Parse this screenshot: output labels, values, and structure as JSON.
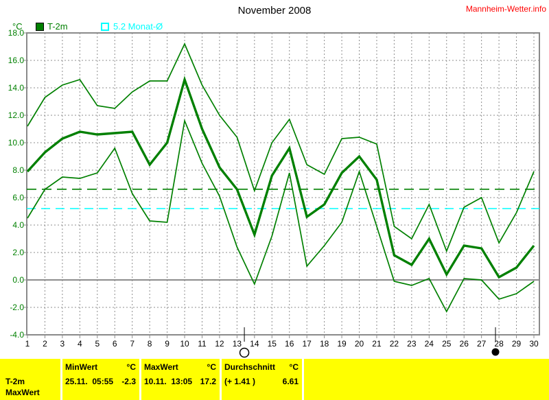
{
  "header": {
    "title": "November 2008",
    "site": "Mannheim-Wetter.info"
  },
  "legend": {
    "unit": "°C",
    "series1": "T-2m",
    "series2": "5.2 Monat-Ø"
  },
  "colors": {
    "line_green": "#008000",
    "cyan": "#00ffff",
    "grid": "#8c8c8c",
    "border": "#8a8a8a",
    "red": "#ff0000",
    "table_bg": "#ffff00",
    "black": "#000000"
  },
  "chart_data": {
    "type": "line",
    "title": "November 2008",
    "ylabel": "°C",
    "ylim": [
      -4,
      18
    ],
    "ytick_step": 2,
    "grid": true,
    "x": [
      1,
      2,
      3,
      4,
      5,
      6,
      7,
      8,
      9,
      10,
      11,
      12,
      13,
      14,
      15,
      16,
      17,
      18,
      19,
      20,
      21,
      22,
      23,
      24,
      25,
      26,
      27,
      28,
      29,
      30
    ],
    "series": [
      {
        "name": "max",
        "width": 1.7,
        "values": [
          11.2,
          13.3,
          14.2,
          14.6,
          12.7,
          12.5,
          13.7,
          14.5,
          14.5,
          17.2,
          14.2,
          12.0,
          10.4,
          6.5,
          10.0,
          11.7,
          8.4,
          7.7,
          10.3,
          10.4,
          9.9,
          3.9,
          3.0,
          5.5,
          2.1,
          5.3,
          6.0,
          2.7,
          4.9,
          7.9
        ]
      },
      {
        "name": "mean",
        "width": 3.4,
        "values": [
          7.9,
          9.3,
          10.3,
          10.8,
          10.6,
          10.7,
          10.8,
          8.4,
          10.0,
          14.6,
          11.0,
          8.2,
          6.6,
          3.3,
          7.6,
          9.6,
          4.6,
          5.5,
          7.8,
          9.0,
          7.3,
          1.8,
          1.1,
          3.0,
          0.4,
          2.5,
          2.3,
          0.2,
          0.9,
          2.5
        ]
      },
      {
        "name": "min",
        "width": 1.7,
        "values": [
          4.5,
          6.6,
          7.5,
          7.4,
          7.8,
          9.6,
          6.3,
          4.3,
          4.2,
          11.6,
          8.5,
          6.1,
          2.4,
          -0.3,
          3.2,
          7.8,
          1.0,
          2.5,
          4.2,
          7.9,
          3.9,
          -0.1,
          -0.4,
          0.1,
          -2.3,
          0.1,
          0.0,
          -1.4,
          -1.0,
          -0.1
        ]
      }
    ],
    "avg_line_value": 6.61,
    "month_avg_line_value": 5.2,
    "moon_markers": {
      "full_moon_day": 13.42,
      "new_moon_day": 27.8
    }
  },
  "table": {
    "col_headers": {
      "min": "MinWert",
      "min_unit": "°C",
      "max": "MaxWert",
      "max_unit": "°C",
      "avg": "Durchschnitt",
      "avg_unit": "°C"
    },
    "row": {
      "name": "T-2m",
      "min_date": "25.11.  05:55",
      "min_val": "-2.3",
      "max_date": "10.11.  13:05",
      "max_val": "17.2",
      "avg_delta": "(+ 1.41 )",
      "avg_val": "6.61"
    },
    "next_row_name": "MaxWert"
  }
}
